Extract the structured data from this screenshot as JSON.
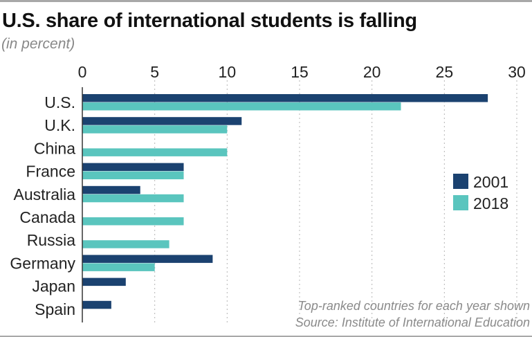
{
  "chart_data": {
    "type": "bar",
    "orientation": "horizontal",
    "title": "U.S. share of international students is falling",
    "subtitle": "(in percent)",
    "categories": [
      "U.S.",
      "U.K.",
      "China",
      "France",
      "Australia",
      "Canada",
      "Russia",
      "Germany",
      "Japan",
      "Spain"
    ],
    "series": [
      {
        "name": "2001",
        "color": "#1b4270",
        "values": [
          28,
          11,
          null,
          7,
          4,
          null,
          null,
          9,
          3,
          2
        ]
      },
      {
        "name": "2018",
        "color": "#5ac5be",
        "values": [
          22,
          10,
          10,
          7,
          7,
          7,
          6,
          5,
          null,
          null
        ]
      }
    ],
    "xlim": [
      0,
      30
    ],
    "xticks": [
      "0",
      "5",
      "10",
      "15",
      "20",
      "25",
      "30"
    ],
    "grid": true,
    "legend_placement": "right",
    "notes": [
      "Top-ranked countries for each year shown",
      "Source: Institute of International Education"
    ]
  }
}
